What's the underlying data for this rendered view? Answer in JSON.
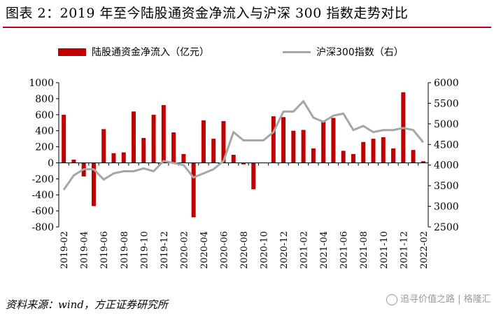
{
  "title": "图表 2：2019 年至今陆股通资金净流入与沪深 300 指数走势对比",
  "source": "资料来源：wind，方正证券研究所",
  "watermark": "追寻价值之路 | 格隆汇",
  "colors": {
    "bar": "#c00000",
    "line": "#a6a6a6",
    "accent": "#b3001b"
  },
  "chart_data": {
    "type": "bar",
    "categories": [
      "2019-02",
      "2019-03",
      "2019-04",
      "2019-05",
      "2019-06",
      "2019-07",
      "2019-08",
      "2019-09",
      "2019-10",
      "2019-11",
      "2019-12",
      "2020-01",
      "2020-02",
      "2020-03",
      "2020-04",
      "2020-05",
      "2020-06",
      "2020-07",
      "2020-08",
      "2020-09",
      "2020-10",
      "2020-11",
      "2020-12",
      "2021-01",
      "2021-02",
      "2021-03",
      "2021-04",
      "2021-05",
      "2021-06",
      "2021-07",
      "2021-08",
      "2021-09",
      "2021-10",
      "2021-11",
      "2021-12",
      "2022-01",
      "2022-02"
    ],
    "x_tick_labels": [
      "2019-02",
      "2019-04",
      "2019-06",
      "2019-08",
      "2019-10",
      "2019-12",
      "2020-02",
      "2020-04",
      "2020-06",
      "2020-08",
      "2020-10",
      "2020-12",
      "2021-02",
      "2021-04",
      "2021-06",
      "2021-08",
      "2021-10",
      "2021-12",
      "2022-02"
    ],
    "series": [
      {
        "name": "陆股通资金净流入（亿元）",
        "type": "bar",
        "axis": "left",
        "values": [
          600,
          40,
          -170,
          -540,
          420,
          120,
          130,
          640,
          310,
          600,
          720,
          380,
          110,
          -680,
          530,
          300,
          520,
          100,
          -20,
          -330,
          0,
          580,
          570,
          400,
          410,
          180,
          520,
          560,
          150,
          110,
          260,
          300,
          320,
          180,
          880,
          160,
          20
        ]
      },
      {
        "name": "沪深300指数（右）",
        "type": "line",
        "axis": "right",
        "values": [
          3400,
          3750,
          3900,
          3900,
          3650,
          3800,
          3850,
          3850,
          3920,
          3850,
          4100,
          4050,
          4000,
          3700,
          3800,
          3900,
          4100,
          4800,
          4600,
          4600,
          4600,
          4800,
          5300,
          5300,
          5550,
          5150,
          5050,
          5200,
          5250,
          4850,
          4950,
          4800,
          4850,
          4850,
          4900,
          4850,
          4550
        ]
      }
    ],
    "y_left": {
      "min": -800,
      "max": 1000,
      "ticks": [
        1000,
        800,
        600,
        400,
        200,
        0,
        -200,
        -400,
        -600,
        -800
      ]
    },
    "y_right": {
      "min": 2500,
      "max": 6000,
      "ticks": [
        6000,
        5500,
        5000,
        4500,
        4000,
        3500,
        3000,
        2500
      ]
    },
    "legend_position": "top",
    "grid": false
  }
}
